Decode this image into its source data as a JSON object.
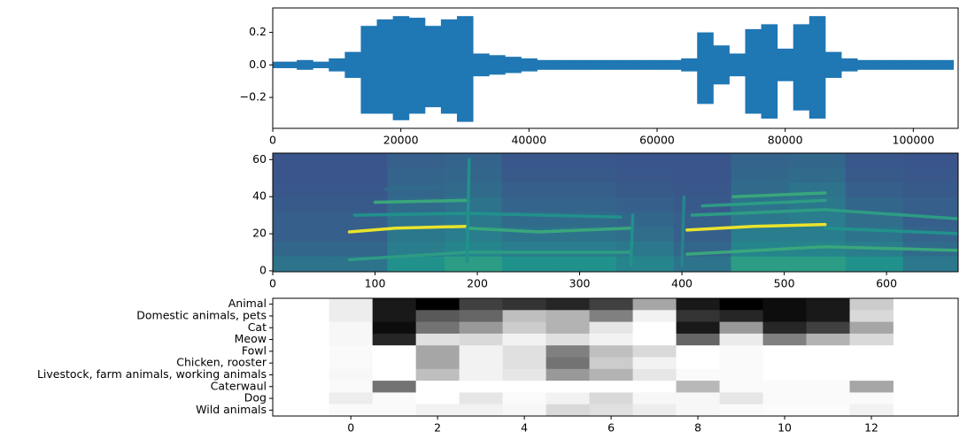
{
  "chart_data": [
    {
      "type": "waveform",
      "color": "#1f77b4",
      "xlim": [
        0,
        107000
      ],
      "ylim": [
        -0.39,
        0.35
      ],
      "xticks": [
        0,
        20000,
        40000,
        60000,
        80000,
        100000
      ],
      "yticks": [
        {
          "value": -0.2,
          "label": "−0.2"
        },
        {
          "value": 0,
          "label": "0.0"
        },
        0.2
      ],
      "x": [
        0,
        2500,
        5000,
        7500,
        10000,
        12500,
        15000,
        17500,
        20000,
        22500,
        25000,
        27500,
        30000,
        32500,
        35000,
        37500,
        40000,
        42500,
        45000,
        47500,
        50000,
        52500,
        55000,
        57500,
        60000,
        62500,
        65000,
        67500,
        70000,
        72500,
        75000,
        77500,
        80000,
        82500,
        85000,
        87500,
        90000,
        92500,
        95000,
        97500,
        100000,
        102500,
        105000
      ],
      "upper": [
        0.02,
        0.02,
        0.03,
        0.02,
        0.04,
        0.08,
        0.24,
        0.28,
        0.3,
        0.29,
        0.24,
        0.28,
        0.3,
        0.07,
        0.06,
        0.05,
        0.04,
        0.03,
        0.03,
        0.03,
        0.03,
        0.03,
        0.03,
        0.03,
        0.03,
        0.03,
        0.04,
        0.2,
        0.12,
        0.07,
        0.22,
        0.25,
        0.1,
        0.25,
        0.3,
        0.08,
        0.04,
        0.03,
        0.03,
        0.03,
        0.03,
        0.03,
        0.03
      ],
      "lower": [
        -0.02,
        -0.02,
        -0.03,
        -0.02,
        -0.04,
        -0.08,
        -0.3,
        -0.3,
        -0.34,
        -0.3,
        -0.26,
        -0.3,
        -0.35,
        -0.07,
        -0.06,
        -0.05,
        -0.04,
        -0.03,
        -0.03,
        -0.03,
        -0.03,
        -0.03,
        -0.03,
        -0.03,
        -0.03,
        -0.03,
        -0.04,
        -0.24,
        -0.12,
        -0.07,
        -0.3,
        -0.33,
        -0.1,
        -0.28,
        -0.33,
        -0.08,
        -0.04,
        -0.03,
        -0.03,
        -0.03,
        -0.03,
        -0.03,
        -0.03
      ]
    },
    {
      "type": "spectrogram",
      "colormap": "viridis",
      "xlim": [
        0,
        670
      ],
      "ylim": [
        -0.5,
        63.5
      ],
      "xticks": [
        0,
        100,
        200,
        300,
        400,
        500,
        600
      ],
      "yticks": [
        0,
        20,
        40,
        60
      ],
      "x": [
        0,
        56,
        112,
        168,
        224,
        280,
        336,
        392,
        448,
        504,
        560,
        616,
        672
      ],
      "bins": [
        0,
        8,
        16,
        24,
        32,
        40,
        48,
        56,
        64
      ],
      "values": [
        [
          0.38,
          0.38,
          0.5,
          0.55,
          0.5,
          0.5,
          0.45,
          0.38,
          0.55,
          0.55,
          0.5,
          0.4
        ],
        [
          0.33,
          0.33,
          0.42,
          0.45,
          0.42,
          0.42,
          0.4,
          0.33,
          0.45,
          0.45,
          0.42,
          0.35
        ],
        [
          0.3,
          0.3,
          0.4,
          0.42,
          0.38,
          0.38,
          0.36,
          0.3,
          0.42,
          0.42,
          0.38,
          0.32
        ],
        [
          0.3,
          0.3,
          0.38,
          0.4,
          0.35,
          0.35,
          0.33,
          0.3,
          0.4,
          0.42,
          0.36,
          0.3
        ],
        [
          0.28,
          0.28,
          0.35,
          0.38,
          0.32,
          0.32,
          0.3,
          0.28,
          0.38,
          0.4,
          0.33,
          0.3
        ],
        [
          0.27,
          0.27,
          0.33,
          0.35,
          0.3,
          0.3,
          0.28,
          0.27,
          0.35,
          0.38,
          0.3,
          0.28
        ],
        [
          0.26,
          0.26,
          0.32,
          0.33,
          0.28,
          0.28,
          0.27,
          0.26,
          0.33,
          0.35,
          0.28,
          0.27
        ],
        [
          0.26,
          0.26,
          0.3,
          0.32,
          0.27,
          0.27,
          0.26,
          0.26,
          0.32,
          0.33,
          0.27,
          0.26
        ]
      ],
      "tracks": [
        {
          "x": [
            75,
            120,
            190
          ],
          "y": [
            21,
            23,
            24
          ],
          "level": 0.97
        },
        {
          "x": [
            190,
            260,
            350
          ],
          "y": [
            23,
            21,
            23
          ],
          "level": 0.6
        },
        {
          "x": [
            75,
            190,
            350
          ],
          "y": [
            6,
            10,
            10
          ],
          "level": 0.55
        },
        {
          "x": [
            80,
            190,
            340
          ],
          "y": [
            30,
            31,
            29
          ],
          "level": 0.5
        },
        {
          "x": [
            100,
            190
          ],
          "y": [
            37,
            38
          ],
          "level": 0.6
        },
        {
          "x": [
            110,
            190
          ],
          "y": [
            44,
            46
          ],
          "level": 0.35
        },
        {
          "x": [
            405,
            470,
            540
          ],
          "y": [
            22,
            24,
            25
          ],
          "level": 0.97
        },
        {
          "x": [
            540,
            672
          ],
          "y": [
            23,
            20
          ],
          "level": 0.5
        },
        {
          "x": [
            405,
            540,
            672
          ],
          "y": [
            9,
            13,
            11
          ],
          "level": 0.6
        },
        {
          "x": [
            410,
            540,
            672
          ],
          "y": [
            30,
            33,
            28
          ],
          "level": 0.55
        },
        {
          "x": [
            420,
            540
          ],
          "y": [
            35,
            38
          ],
          "level": 0.55
        },
        {
          "x": [
            450,
            540
          ],
          "y": [
            40,
            42
          ],
          "level": 0.6
        },
        {
          "x": [
            460,
            540
          ],
          "y": [
            48,
            50
          ],
          "level": 0.35
        },
        {
          "x": [
            190,
            192
          ],
          "y": [
            5,
            60
          ],
          "level": 0.5
        },
        {
          "x": [
            350,
            352
          ],
          "y": [
            3,
            30
          ],
          "level": 0.5
        },
        {
          "x": [
            400,
            402
          ],
          "y": [
            3,
            40
          ],
          "level": 0.45
        }
      ]
    },
    {
      "type": "heatmap",
      "colormap": "Greys",
      "xlim": [
        -1.8,
        14.0
      ],
      "xticks": [
        0,
        2,
        4,
        6,
        8,
        10,
        12
      ],
      "categories": [
        "Animal",
        "Domestic animals, pets",
        "Cat",
        "Meow",
        "Fowl",
        "Chicken, rooster",
        "Livestock, farm animals, working animals",
        "Caterwaul",
        "Dog",
        "Wild animals"
      ],
      "x": [
        0,
        1,
        2,
        3,
        4,
        5,
        6,
        7,
        8,
        9,
        10,
        11,
        12
      ],
      "values": [
        [
          0.07,
          0.9,
          1.0,
          0.75,
          0.8,
          0.85,
          0.75,
          0.35,
          0.9,
          1.0,
          0.95,
          0.9,
          0.2
        ],
        [
          0.07,
          0.9,
          0.65,
          0.6,
          0.25,
          0.3,
          0.5,
          0.05,
          0.8,
          0.85,
          0.95,
          0.9,
          0.15
        ],
        [
          0.03,
          0.95,
          0.55,
          0.4,
          0.2,
          0.3,
          0.1,
          0.0,
          0.9,
          0.4,
          0.85,
          0.75,
          0.35
        ],
        [
          0.03,
          0.85,
          0.12,
          0.15,
          0.05,
          0.12,
          0.05,
          0.0,
          0.6,
          0.08,
          0.5,
          0.3,
          0.15
        ],
        [
          0.02,
          0.0,
          0.35,
          0.05,
          0.12,
          0.5,
          0.25,
          0.15,
          0.0,
          0.02,
          0.0,
          0.0,
          0.0
        ],
        [
          0.02,
          0.0,
          0.35,
          0.05,
          0.12,
          0.55,
          0.2,
          0.05,
          0.0,
          0.02,
          0.0,
          0.0,
          0.0
        ],
        [
          0.03,
          0.0,
          0.25,
          0.05,
          0.1,
          0.4,
          0.3,
          0.1,
          0.02,
          0.02,
          0.0,
          0.0,
          0.0
        ],
        [
          0.02,
          0.55,
          0.0,
          0.0,
          0.0,
          0.0,
          0.0,
          0.0,
          0.28,
          0.02,
          0.02,
          0.02,
          0.35
        ],
        [
          0.07,
          0.02,
          0.0,
          0.1,
          0.02,
          0.05,
          0.15,
          0.03,
          0.03,
          0.1,
          0.02,
          0.02,
          0.02
        ],
        [
          0.02,
          0.02,
          0.05,
          0.05,
          0.03,
          0.15,
          0.12,
          0.07,
          0.03,
          0.02,
          0.01,
          0.01,
          0.05
        ]
      ]
    }
  ]
}
